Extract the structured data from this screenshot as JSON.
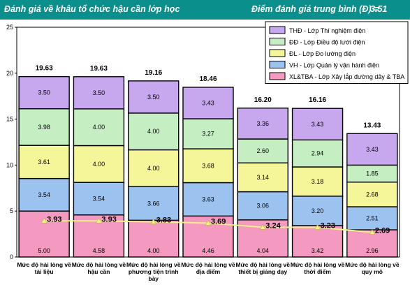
{
  "header": {
    "title": "Đánh giá về khâu tổ chức hậu cần lớp học",
    "avg_label": "Điểm đánh giá trung bình (Đ) =",
    "avg_value": "3.51"
  },
  "chart_data": {
    "type": "bar",
    "stacked": true,
    "title": "Đánh giá về khâu tổ chức hậu cần lớp học",
    "ylim": [
      0,
      25
    ],
    "yticks": [
      "0",
      "5",
      "10",
      "15",
      "20",
      "25"
    ],
    "categories": [
      [
        "Mức độ hài lòng về",
        "tài liệu"
      ],
      [
        "Mức độ hài lòng về",
        "hậu cần"
      ],
      [
        "Mức độ hài lòng về",
        "phương tiện trình",
        "bày"
      ],
      [
        "Mức độ hài lòng về",
        "địa điểm"
      ],
      [
        "Mức độ hài lòng về",
        "thiết bị giảng dạy"
      ],
      [
        "Mức độ hài lòng về",
        "thời điểm"
      ],
      [
        "Mức độ hài lòng về",
        "quy mô"
      ]
    ],
    "series": [
      {
        "name": "XL&TBA - Lớp Xây lắp đường dây & TBA",
        "color": "#f49ac1",
        "values": [
          5.0,
          4.58,
          4.0,
          4.46,
          4.04,
          3.42,
          2.96
        ],
        "labels": [
          "5.00",
          "4.58",
          "4.00",
          "4.46",
          "4.04",
          "3.42",
          "2.96"
        ]
      },
      {
        "name": "VH - Lớp Quản lý vận hành điện",
        "color": "#9cc2f0",
        "values": [
          3.54,
          3.54,
          3.66,
          3.63,
          3.06,
          3.2,
          2.51
        ],
        "labels": [
          "3.54",
          "3.54",
          "3.66",
          "3.63",
          "3.06",
          "3.20",
          "2.51"
        ]
      },
      {
        "name": "ĐL - Lớp Đo lường điện",
        "color": "#f5f59a",
        "values": [
          3.61,
          4.0,
          4.0,
          3.68,
          3.14,
          3.18,
          2.68
        ],
        "labels": [
          "3.61",
          "4.00",
          "4.00",
          "3.68",
          "3.14",
          "3.18",
          "2.68"
        ]
      },
      {
        "name": "ĐĐ - Lớp Điều độ lưới điện",
        "color": "#c5efc2",
        "values": [
          3.98,
          4.0,
          4.0,
          3.27,
          2.6,
          2.94,
          1.85
        ],
        "labels": [
          "3.98",
          "4.00",
          "4.00",
          "3.27",
          "2.60",
          "2.94",
          "1.85"
        ]
      },
      {
        "name": "THĐ - Lớp Thí nghiệm điện",
        "color": "#c7a8ee",
        "values": [
          3.5,
          3.5,
          3.5,
          3.43,
          3.36,
          3.43,
          3.43
        ],
        "labels": [
          "3.50",
          "3.50",
          "3.50",
          "3.43",
          "3.36",
          "3.43",
          "3.43"
        ]
      }
    ],
    "legend_order": [
      4,
      3,
      2,
      1,
      0
    ],
    "legend_position": "top-right",
    "totals": [
      "19.63",
      "19.63",
      "19.16",
      "18.46",
      "16.20",
      "16.16",
      "13.43"
    ],
    "line": {
      "color": "#f5f08a",
      "values": [
        3.93,
        3.93,
        3.83,
        3.69,
        3.24,
        3.23,
        2.69
      ],
      "labels": [
        "3.93",
        "3.93",
        "3.83",
        "3.69",
        "3.24",
        "3.23",
        "2.69"
      ]
    }
  }
}
